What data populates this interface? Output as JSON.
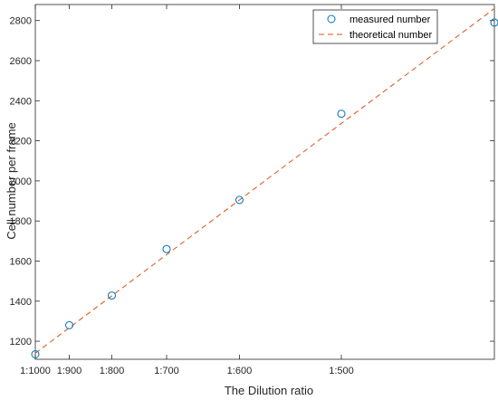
{
  "chart_data": {
    "type": "scatter",
    "title": "",
    "xlabel": "The Dilution ratio",
    "ylabel": "Cell number per frame",
    "x_ticks": [
      {
        "value": 0.001,
        "label": "1:1000"
      },
      {
        "value": 0.001111,
        "label": "1:900"
      },
      {
        "value": 0.00125,
        "label": "1:800"
      },
      {
        "value": 0.001429,
        "label": "1:700"
      },
      {
        "value": 0.001667,
        "label": "1:600"
      },
      {
        "value": 0.002,
        "label": "1:500"
      }
    ],
    "y_ticks": [
      1200,
      1400,
      1600,
      1800,
      2000,
      2200,
      2400,
      2600,
      2800
    ],
    "xlim": [
      0.001,
      0.0025
    ],
    "ylim": [
      1110,
      2880
    ],
    "grid": false,
    "legend_position": "top-right",
    "series": [
      {
        "name": "measured number",
        "kind": "scatter",
        "marker": "circle-open",
        "color": "#0072BD",
        "points": [
          {
            "x": 0.001,
            "y": 1135
          },
          {
            "x": 0.001111,
            "y": 1280
          },
          {
            "x": 0.00125,
            "y": 1428
          },
          {
            "x": 0.001429,
            "y": 1660
          },
          {
            "x": 0.001667,
            "y": 1905
          },
          {
            "x": 0.002,
            "y": 2335
          },
          {
            "x": 0.0025,
            "y": 2790
          }
        ]
      },
      {
        "name": "theoretical number",
        "kind": "line",
        "style": "dashed",
        "color": "#D95319",
        "points": [
          {
            "x": 0.001,
            "y": 1140
          },
          {
            "x": 0.0025,
            "y": 2860
          }
        ]
      }
    ]
  }
}
